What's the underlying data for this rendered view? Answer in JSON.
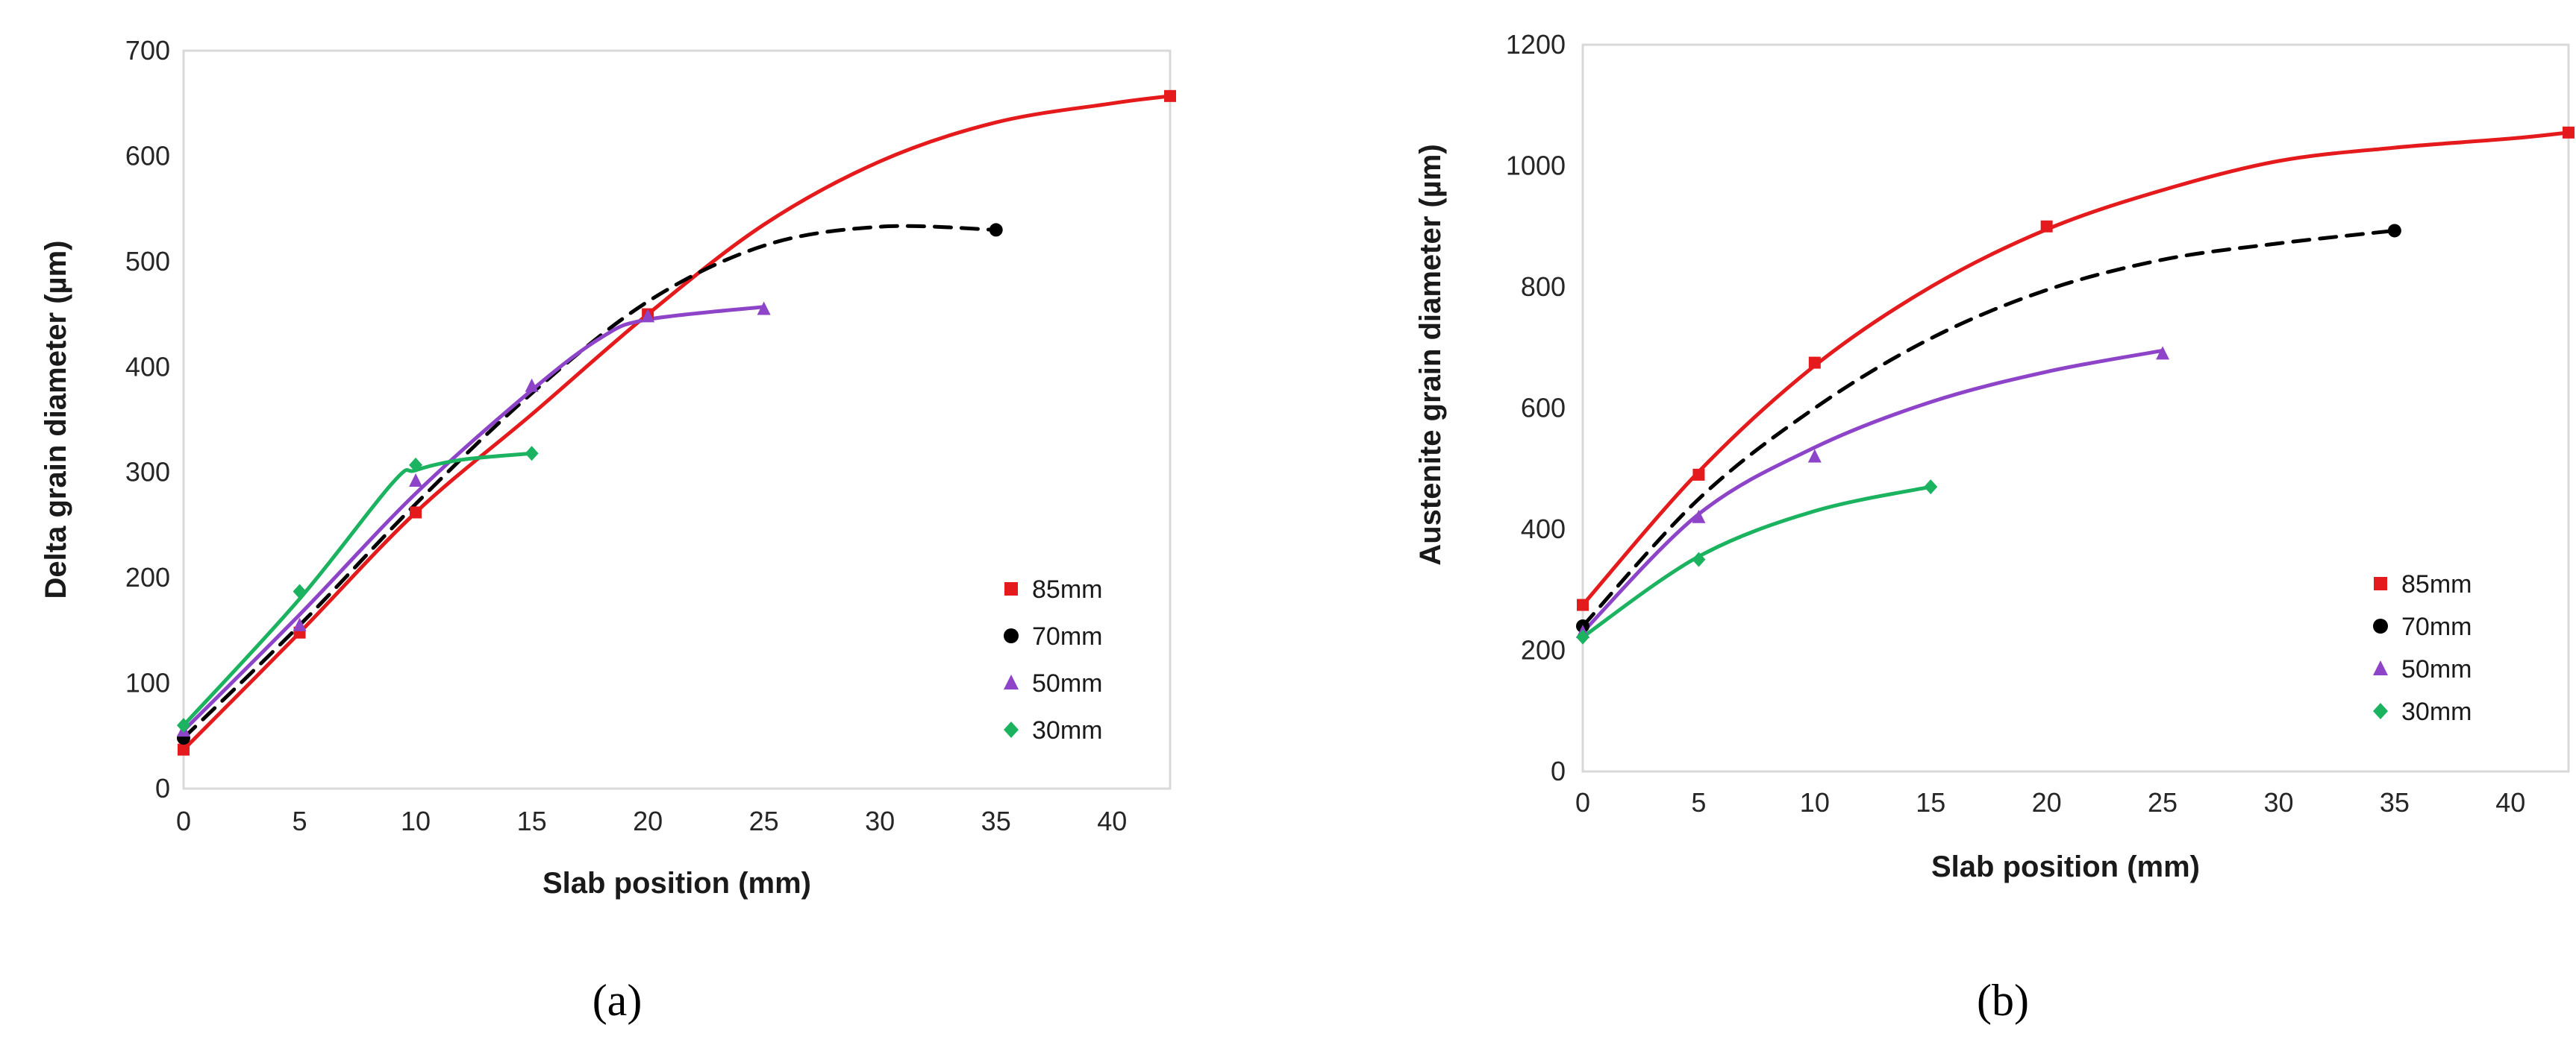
{
  "chart_data": [
    {
      "type": "scatter",
      "panel_label": "(a)",
      "xlabel": "Slab position (mm)",
      "ylabel": "Delta grain diameter (µm)",
      "xlim": [
        0,
        42.5
      ],
      "ylim": [
        0,
        700
      ],
      "xticks": [
        0,
        5,
        10,
        15,
        20,
        25,
        30,
        35,
        40
      ],
      "yticks": [
        0,
        100,
        200,
        300,
        400,
        500,
        600,
        700
      ],
      "legend_position": "bottom-right",
      "series": [
        {
          "name": "85mm",
          "color": "#e41a1c",
          "marker": "square",
          "dashed": false,
          "x": [
            0,
            5,
            10,
            20,
            42.5
          ],
          "y": [
            37,
            148,
            262,
            450,
            657
          ],
          "curve": [
            [
              0,
              37
            ],
            [
              5,
              148
            ],
            [
              10,
              262
            ],
            [
              15,
              355
            ],
            [
              20,
              450
            ],
            [
              25,
              535
            ],
            [
              30,
              595
            ],
            [
              35,
              632
            ],
            [
              40,
              650
            ],
            [
              42.5,
              657
            ]
          ]
        },
        {
          "name": "70mm",
          "color": "#000000",
          "marker": "circle",
          "dashed": true,
          "x": [
            0,
            35
          ],
          "y": [
            48,
            530
          ],
          "curve": [
            [
              0,
              48
            ],
            [
              5,
              155
            ],
            [
              10,
              270
            ],
            [
              15,
              375
            ],
            [
              20,
              462
            ],
            [
              25,
              515
            ],
            [
              30,
              533
            ],
            [
              35,
              530
            ]
          ]
        },
        {
          "name": "50mm",
          "color": "#8e44c8",
          "marker": "triangle",
          "dashed": false,
          "x": [
            0,
            5,
            10,
            15,
            20,
            25
          ],
          "y": [
            55,
            155,
            292,
            382,
            448,
            455
          ],
          "curve": [
            [
              0,
              55
            ],
            [
              5,
              165
            ],
            [
              10,
              280
            ],
            [
              15,
              378
            ],
            [
              18,
              428
            ],
            [
              20,
              445
            ],
            [
              25,
              457
            ]
          ]
        },
        {
          "name": "30mm",
          "color": "#1bb360",
          "marker": "diamond",
          "dashed": false,
          "x": [
            0,
            5,
            10,
            15
          ],
          "y": [
            60,
            187,
            307,
            318
          ],
          "curve": [
            [
              0,
              60
            ],
            [
              5,
              180
            ],
            [
              9,
              290
            ],
            [
              10,
              302
            ],
            [
              12,
              312
            ],
            [
              15,
              318
            ]
          ]
        }
      ]
    },
    {
      "type": "scatter",
      "panel_label": "(b)",
      "xlabel": "Slab position (mm)",
      "ylabel": "Austenite grain diameter (µm)",
      "xlim": [
        0,
        42.5
      ],
      "ylim": [
        0,
        1200
      ],
      "xticks": [
        0,
        5,
        10,
        15,
        20,
        25,
        30,
        35,
        40
      ],
      "yticks": [
        0,
        200,
        400,
        600,
        800,
        1000,
        1200
      ],
      "legend_position": "bottom-right",
      "series": [
        {
          "name": "85mm",
          "color": "#e41a1c",
          "marker": "square",
          "dashed": false,
          "x": [
            0,
            5,
            10,
            20,
            42.5
          ],
          "y": [
            275,
            490,
            675,
            900,
            1055
          ],
          "curve": [
            [
              0,
              275
            ],
            [
              5,
              495
            ],
            [
              10,
              670
            ],
            [
              15,
              800
            ],
            [
              20,
              895
            ],
            [
              25,
              960
            ],
            [
              30,
              1008
            ],
            [
              35,
              1030
            ],
            [
              40,
              1045
            ],
            [
              42.5,
              1055
            ]
          ]
        },
        {
          "name": "70mm",
          "color": "#000000",
          "marker": "circle",
          "dashed": true,
          "x": [
            0,
            35
          ],
          "y": [
            240,
            893
          ],
          "curve": [
            [
              0,
              240
            ],
            [
              5,
              450
            ],
            [
              10,
              600
            ],
            [
              15,
              715
            ],
            [
              20,
              795
            ],
            [
              25,
              845
            ],
            [
              30,
              872
            ],
            [
              35,
              893
            ]
          ]
        },
        {
          "name": "50mm",
          "color": "#8e44c8",
          "marker": "triangle",
          "dashed": false,
          "x": [
            0,
            5,
            10,
            25
          ],
          "y": [
            230,
            420,
            520,
            690
          ],
          "curve": [
            [
              0,
              230
            ],
            [
              5,
              425
            ],
            [
              10,
              535
            ],
            [
              15,
              610
            ],
            [
              20,
              660
            ],
            [
              25,
              695
            ]
          ]
        },
        {
          "name": "30mm",
          "color": "#1bb360",
          "marker": "diamond",
          "dashed": false,
          "x": [
            0,
            5,
            15
          ],
          "y": [
            222,
            350,
            470
          ],
          "curve": [
            [
              0,
              222
            ],
            [
              5,
              355
            ],
            [
              10,
              430
            ],
            [
              15,
              470
            ]
          ]
        }
      ]
    }
  ]
}
